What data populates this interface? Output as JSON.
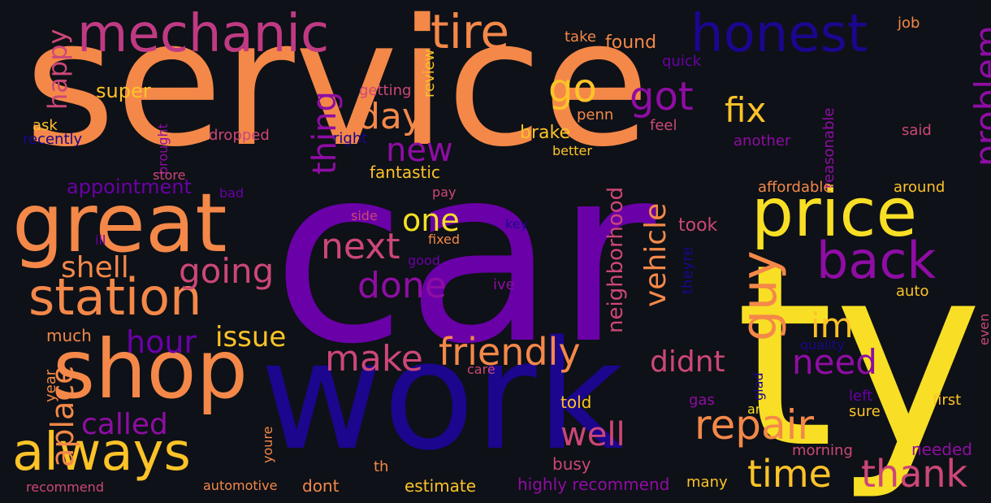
{
  "words": [
    {
      "text": "service",
      "color": "#f48849",
      "rotated": false
    },
    {
      "text": "car",
      "color": "#6a00a8",
      "rotated": false
    },
    {
      "text": "work",
      "color": "#1b068d",
      "rotated": false
    },
    {
      "text": "ty",
      "color": "#f8df25",
      "rotated": false
    },
    {
      "text": "great",
      "color": "#f48849",
      "rotated": false
    },
    {
      "text": "shop",
      "color": "#f48849",
      "rotated": false
    },
    {
      "text": "price",
      "color": "#f8df25",
      "rotated": false
    },
    {
      "text": "mechanic",
      "color": "#c03a83",
      "rotated": false
    },
    {
      "text": "honest",
      "color": "#1b068d",
      "rotated": false
    },
    {
      "text": "station",
      "color": "#f48849",
      "rotated": false
    },
    {
      "text": "always",
      "color": "#fdc328",
      "rotated": false
    },
    {
      "text": "tire",
      "color": "#f48849",
      "rotated": false
    },
    {
      "text": "back",
      "color": "#8f0da4",
      "rotated": false
    },
    {
      "text": "repair",
      "color": "#f48849",
      "rotated": false
    },
    {
      "text": "time",
      "color": "#fdc328",
      "rotated": false
    },
    {
      "text": "thank",
      "color": "#cc4778",
      "rotated": false
    },
    {
      "text": "friendly",
      "color": "#f48849",
      "rotated": false
    },
    {
      "text": "guy",
      "color": "#f48849",
      "rotated": true
    },
    {
      "text": "make",
      "color": "#cc4778",
      "rotated": false
    },
    {
      "text": "done",
      "color": "#8f0da4",
      "rotated": false
    },
    {
      "text": "next",
      "color": "#cc4778",
      "rotated": false
    },
    {
      "text": "going",
      "color": "#cc4778",
      "rotated": false
    },
    {
      "text": "shell",
      "color": "#f48849",
      "rotated": false
    },
    {
      "text": "day",
      "color": "#f48849",
      "rotated": false
    },
    {
      "text": "go",
      "color": "#fdc328",
      "rotated": false
    },
    {
      "text": "got",
      "color": "#8f0da4",
      "rotated": false
    },
    {
      "text": "fix",
      "color": "#fdc328",
      "rotated": false
    },
    {
      "text": "new",
      "color": "#8f0da4",
      "rotated": false
    },
    {
      "text": "one",
      "color": "#f8df25",
      "rotated": false
    },
    {
      "text": "im",
      "color": "#fdc328",
      "rotated": false
    },
    {
      "text": "need",
      "color": "#8f0da4",
      "rotated": false
    },
    {
      "text": "didnt",
      "color": "#cc4778",
      "rotated": false
    },
    {
      "text": "hour",
      "color": "#6a00a8",
      "rotated": false
    },
    {
      "text": "issue",
      "color": "#fdc328",
      "rotated": false
    },
    {
      "text": "called",
      "color": "#8f0da4",
      "rotated": false
    },
    {
      "text": "well",
      "color": "#cc4778",
      "rotated": false
    },
    {
      "text": "problem",
      "color": "#8f0da4",
      "rotated": true
    },
    {
      "text": "vehicle",
      "color": "#f48849",
      "rotated": true
    },
    {
      "text": "thing",
      "color": "#8f0da4",
      "rotated": true
    },
    {
      "text": "aplace",
      "color": "#f48849",
      "rotated": true
    },
    {
      "text": "happy",
      "color": "#cc4778",
      "rotated": true
    },
    {
      "text": "neighborhood",
      "color": "#cc4778",
      "rotated": true
    },
    {
      "text": "appointment",
      "color": "#6a00a8",
      "rotated": false
    },
    {
      "text": "super",
      "color": "#fdc328",
      "rotated": false
    },
    {
      "text": "fantastic",
      "color": "#fdc328",
      "rotated": false
    },
    {
      "text": "brake",
      "color": "#fdc328",
      "rotated": false
    },
    {
      "text": "found",
      "color": "#f48849",
      "rotated": false
    },
    {
      "text": "take",
      "color": "#f48849",
      "rotated": false
    },
    {
      "text": "job",
      "color": "#f48849",
      "rotated": false
    },
    {
      "text": "quick",
      "color": "#6a00a8",
      "rotated": false
    },
    {
      "text": "getting",
      "color": "#cc4778",
      "rotated": false
    },
    {
      "text": "review",
      "color": "#fdc328",
      "rotated": true
    },
    {
      "text": "penn",
      "color": "#f48849",
      "rotated": false
    },
    {
      "text": "feel",
      "color": "#cc4778",
      "rotated": false
    },
    {
      "text": "said",
      "color": "#cc4778",
      "rotated": false
    },
    {
      "text": "another",
      "color": "#8f0da4",
      "rotated": false
    },
    {
      "text": "better",
      "color": "#fdc328",
      "rotated": false
    },
    {
      "text": "reasonable",
      "color": "#8f0da4",
      "rotated": true
    },
    {
      "text": "affordable",
      "color": "#f48849",
      "rotated": false
    },
    {
      "text": "around",
      "color": "#fdc328",
      "rotated": false
    },
    {
      "text": "ask",
      "color": "#fdc328",
      "rotated": false
    },
    {
      "text": "recently",
      "color": "#1b068d",
      "rotated": false
    },
    {
      "text": "dropped",
      "color": "#cc4778",
      "rotated": false
    },
    {
      "text": "right",
      "color": "#1b068d",
      "rotated": false
    },
    {
      "text": "brought",
      "color": "#8f0da4",
      "rotated": true
    },
    {
      "text": "store",
      "color": "#cc4778",
      "rotated": false
    },
    {
      "text": "bad",
      "color": "#6a00a8",
      "rotated": false
    },
    {
      "text": "pay",
      "color": "#cc4778",
      "rotated": false
    },
    {
      "text": "side",
      "color": "#cc4778",
      "rotated": false
    },
    {
      "text": "key",
      "color": "#1b068d",
      "rotated": false
    },
    {
      "text": "fixed",
      "color": "#f48849",
      "rotated": false
    },
    {
      "text": "took",
      "color": "#cc4778",
      "rotated": false
    },
    {
      "text": "ill",
      "color": "#6a00a8",
      "rotated": false
    },
    {
      "text": "good",
      "color": "#6a00a8",
      "rotated": false
    },
    {
      "text": "ive",
      "color": "#8f0da4",
      "rotated": false
    },
    {
      "text": "theyre",
      "color": "#1b068d",
      "rotated": true
    },
    {
      "text": "auto",
      "color": "#fdc328",
      "rotated": false
    },
    {
      "text": "much",
      "color": "#f48849",
      "rotated": false
    },
    {
      "text": "quality",
      "color": "#1b068d",
      "rotated": false
    },
    {
      "text": "even",
      "color": "#cc4778",
      "rotated": true
    },
    {
      "text": "care",
      "color": "#cc4778",
      "rotated": false
    },
    {
      "text": "glad",
      "color": "#1b068d",
      "rotated": true
    },
    {
      "text": "year",
      "color": "#f48849",
      "rotated": true
    },
    {
      "text": "gas",
      "color": "#8f0da4",
      "rotated": false
    },
    {
      "text": "told",
      "color": "#fdc328",
      "rotated": false
    },
    {
      "text": "area",
      "color": "#f8df25",
      "rotated": false
    },
    {
      "text": "left",
      "color": "#6a00a8",
      "rotated": false
    },
    {
      "text": "first",
      "color": "#fdc328",
      "rotated": false
    },
    {
      "text": "sure",
      "color": "#fdc328",
      "rotated": false
    },
    {
      "text": "busy",
      "color": "#cc4778",
      "rotated": false
    },
    {
      "text": "youre",
      "color": "#f48849",
      "rotated": true
    },
    {
      "text": "morning",
      "color": "#cc4778",
      "rotated": false
    },
    {
      "text": "needed",
      "color": "#8f0da4",
      "rotated": false
    },
    {
      "text": "th",
      "color": "#f48849",
      "rotated": false
    },
    {
      "text": "estimate",
      "color": "#fdc328",
      "rotated": false
    },
    {
      "text": "highly recommend",
      "color": "#8f0da4",
      "rotated": false
    },
    {
      "text": "many",
      "color": "#fdc328",
      "rotated": false
    },
    {
      "text": "dont",
      "color": "#f48849",
      "rotated": false
    },
    {
      "text": "automotive",
      "color": "#f48849",
      "rotated": false
    },
    {
      "text": "recommend",
      "color": "#cc4778",
      "rotated": false
    }
  ]
}
